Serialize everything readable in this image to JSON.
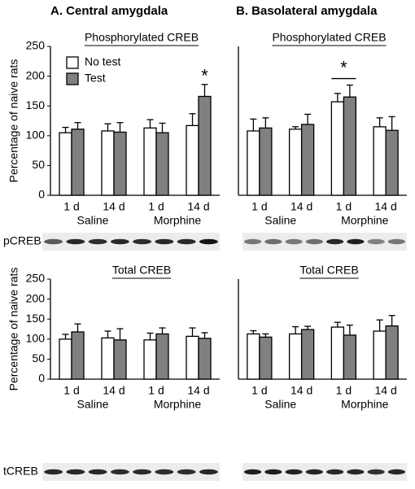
{
  "panels": [
    "A. Central amygdala",
    "B. Basolateral amygdala"
  ],
  "blots": [
    "pCREB",
    "tCREB"
  ],
  "chart_data": [
    {
      "type": "bar",
      "title": "Phosphorylated CREB",
      "y_label": "Percentage of naive rats",
      "categories": [
        "1 d",
        "14 d",
        "1 d",
        "14 d"
      ],
      "groups": [
        "Saline",
        "Morphine"
      ],
      "series": [
        {
          "name": "No test",
          "color": "#ffffff",
          "values": [
            105,
            108,
            113,
            117
          ],
          "errors": [
            9,
            12,
            14,
            20
          ]
        },
        {
          "name": "Test",
          "color": "#808080",
          "values": [
            111,
            106,
            105,
            166
          ],
          "errors": [
            11,
            16,
            16,
            20
          ]
        }
      ],
      "ylim": [
        0,
        250
      ],
      "yticks": [
        0,
        50,
        100,
        150,
        200,
        250
      ],
      "legend": "upper-left",
      "annotation": "*"
    },
    {
      "type": "bar",
      "title": "Phosphorylated CREB",
      "categories": [
        "1 d",
        "14 d",
        "1 d",
        "14 d"
      ],
      "groups": [
        "Saline",
        "Morphine"
      ],
      "series": [
        {
          "color": "#ffffff",
          "values": [
            108,
            111,
            157,
            115
          ],
          "errors": [
            20,
            4,
            14,
            15
          ]
        },
        {
          "color": "#808080",
          "values": [
            113,
            119,
            165,
            109
          ],
          "errors": [
            17,
            17,
            20,
            23
          ]
        }
      ],
      "ylim": [
        0,
        250
      ],
      "annotation": "*"
    },
    {
      "type": "bar",
      "title": "Total CREB",
      "y_label": "Percentage of naive rats",
      "categories": [
        "1 d",
        "14 d",
        "1 d",
        "14 d"
      ],
      "groups": [
        "Saline",
        "Morphine"
      ],
      "series": [
        {
          "color": "#ffffff",
          "values": [
            100,
            103,
            98,
            107
          ],
          "errors": [
            12,
            17,
            17,
            21
          ]
        },
        {
          "color": "#808080",
          "values": [
            118,
            98,
            113,
            102
          ],
          "errors": [
            20,
            28,
            15,
            14
          ]
        }
      ],
      "ylim": [
        0,
        250
      ],
      "yticks": [
        0,
        50,
        100,
        150,
        200,
        250
      ]
    },
    {
      "type": "bar",
      "title": "Total CREB",
      "categories": [
        "1 d",
        "14 d",
        "1 d",
        "14 d"
      ],
      "groups": [
        "Saline",
        "Morphine"
      ],
      "series": [
        {
          "color": "#ffffff",
          "values": [
            113,
            113,
            130,
            120
          ],
          "errors": [
            8,
            18,
            12,
            28
          ]
        },
        {
          "color": "#808080",
          "values": [
            105,
            124,
            110,
            133
          ],
          "errors": [
            8,
            8,
            25,
            26
          ]
        }
      ],
      "ylim": [
        0,
        250
      ]
    }
  ]
}
